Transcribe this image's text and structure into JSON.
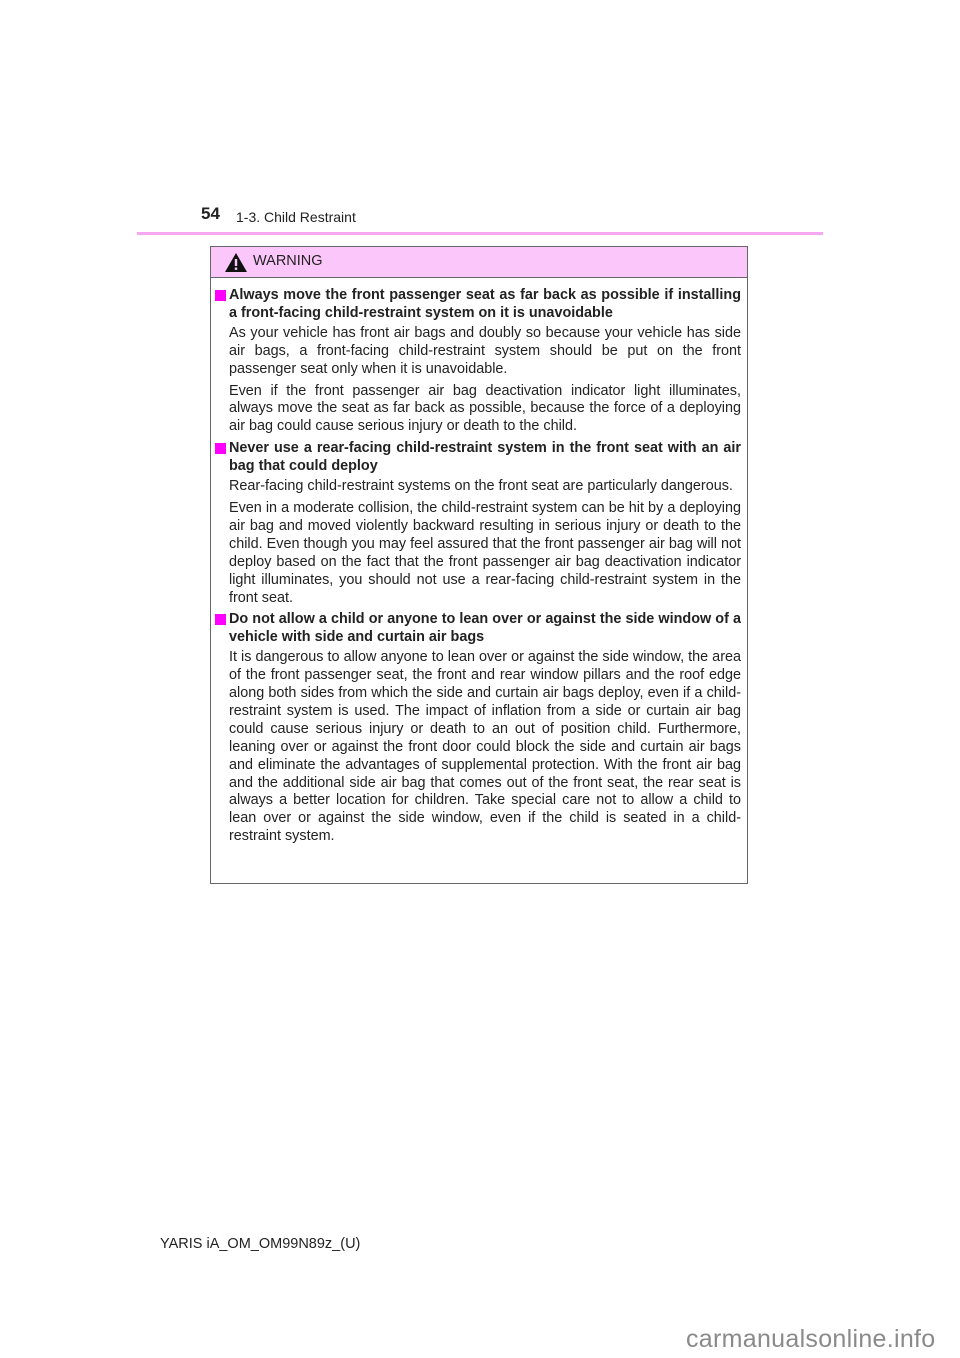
{
  "header": {
    "page_number": "54",
    "section": "1-3. Child Restraint"
  },
  "warning": {
    "icon": "warning-triangle-icon",
    "title": "WARNING",
    "items": [
      {
        "heading": "Always move the front passenger seat as far back as possible if installing a front-facing child-restraint system on it is unavoidable",
        "paragraphs": [
          "As your vehicle has front air bags and doubly so because your vehicle has side air bags, a front-facing child-restraint system should be put on the front passenger seat only when it is unavoidable.",
          "Even if the front passenger air bag deactivation indicator light illuminates, always move the seat as far back as possible, because the force of a deploying air bag could cause serious injury or death to the child."
        ]
      },
      {
        "heading": "Never use a rear-facing child-restraint system in the front seat with an air bag that could deploy",
        "paragraphs": [
          "Rear-facing child-restraint systems on the front seat are particularly dangerous.",
          "Even in a moderate collision, the child-restraint system can be hit by a deploying air bag and moved violently backward resulting in serious injury or death to the child. Even though you may feel assured that the front passenger air bag will not deploy based on the fact that the front passenger air bag deactivation indicator light illuminates, you should not use a rear-facing child-restraint system in the front seat."
        ]
      },
      {
        "heading": "Do not allow a child or anyone to lean over or against the side window of a vehicle with side and curtain air bags",
        "paragraphs": [
          "It is dangerous to allow anyone to lean over or against the side window, the area of the front passenger seat, the front and rear window pillars and the roof edge along both sides from which the side and curtain air bags deploy, even if a child-restraint system is used. The impact of inflation from a side or curtain air bag could cause serious injury or death to an out of position child. Furthermore, leaning over or against the front door could block the side and curtain air bags and eliminate the advantages of supplemental protection. With the front air bag and the additional side air bag that comes out of the front seat, the rear seat is always a better location for children. Take special care not to allow a child to lean over or against the side window, even if the child is seated in a child-restraint system."
        ]
      }
    ]
  },
  "footer": {
    "document_code": "YARIS iA_OM_OM99N89z_(U)"
  },
  "watermark": "carmanualsonline.info",
  "colors": {
    "accent_pink": "#ff00ff",
    "rule_pink": "#f7a6f0",
    "warning_header_bg": "#fbc7fb"
  }
}
